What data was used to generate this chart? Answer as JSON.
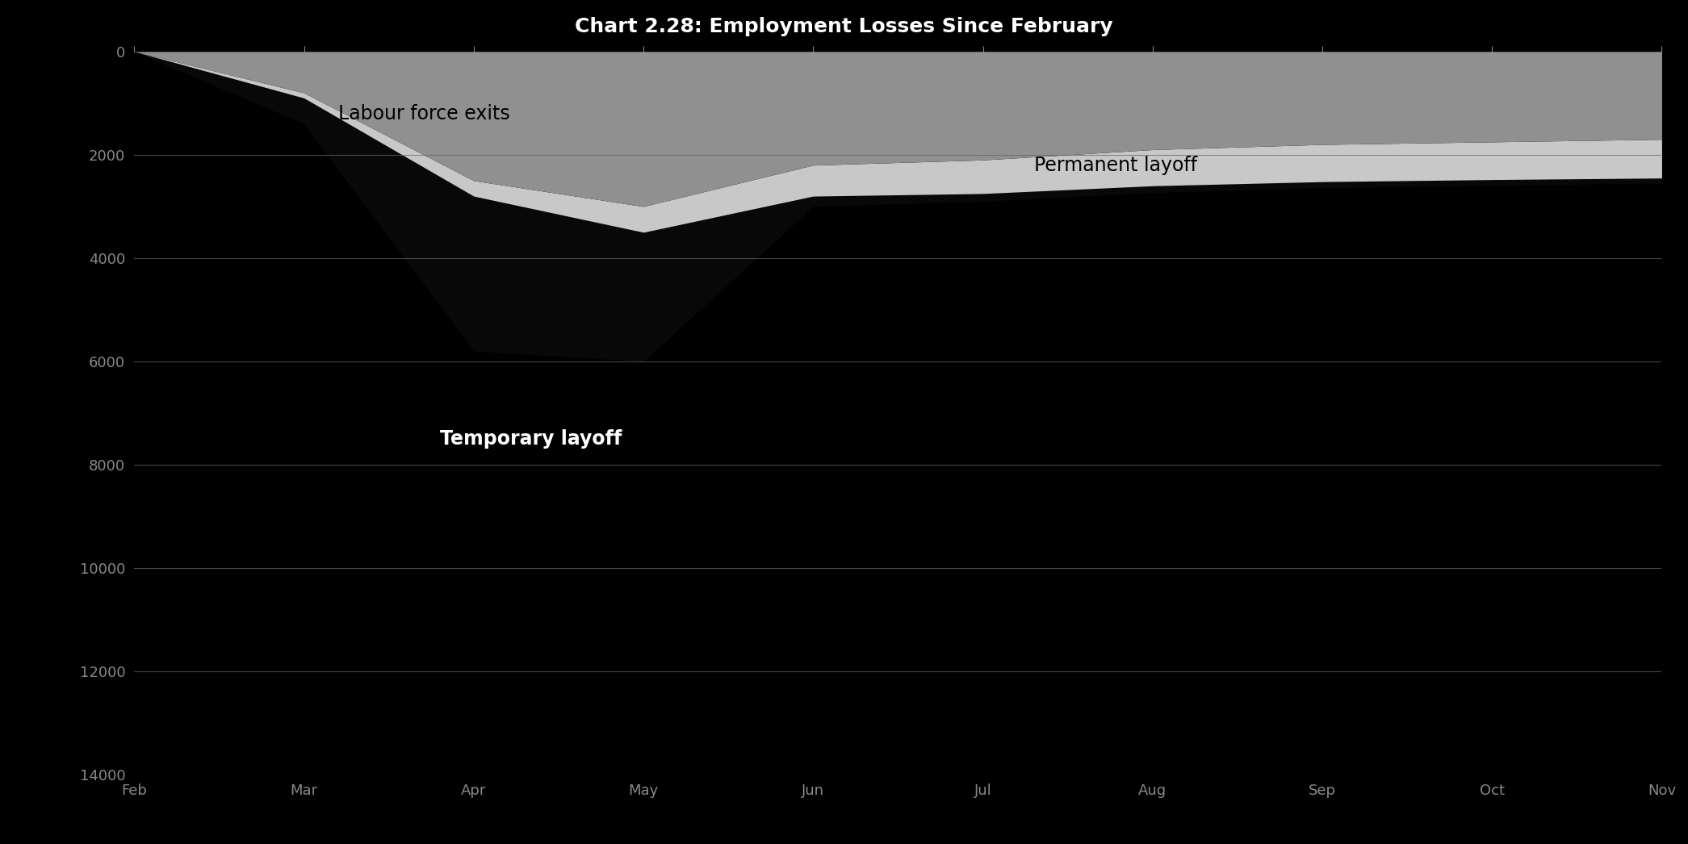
{
  "title": "Chart 2.28: Employment Losses Since February",
  "background_color": "#000000",
  "plot_bg_color": "#000000",
  "grid_color": "#666666",
  "x_labels": [
    "Feb",
    "Mar",
    "Apr",
    "May",
    "Jun",
    "Jul",
    "Aug",
    "Sep",
    "Oct",
    "Nov"
  ],
  "x_values": [
    0,
    1,
    2,
    3,
    4,
    5,
    6,
    7,
    8,
    9
  ],
  "temporary_layoff": [
    0,
    -500,
    -3000,
    -2500,
    -200,
    -150,
    -130,
    -120,
    -110,
    -100
  ],
  "permanent_layoff": [
    0,
    -100,
    -300,
    -500,
    -600,
    -650,
    -700,
    -720,
    -730,
    -750
  ],
  "labour_force_exits": [
    0,
    -800,
    -2500,
    -3000,
    -2200,
    -2100,
    -1900,
    -1800,
    -1750,
    -1700
  ],
  "label_temp": "Temporary layoff",
  "color_temp": "#080808",
  "color_perm": "#c8c8c8",
  "color_labour": "#909090",
  "ylim_min": -14000,
  "ylim_max": 0,
  "ytick_interval": 2000,
  "text_color_light": "#ffffff",
  "text_color_dark": "#000000",
  "title_color": "#ffffff",
  "figsize": [
    20.91,
    10.46
  ],
  "dpi": 100
}
